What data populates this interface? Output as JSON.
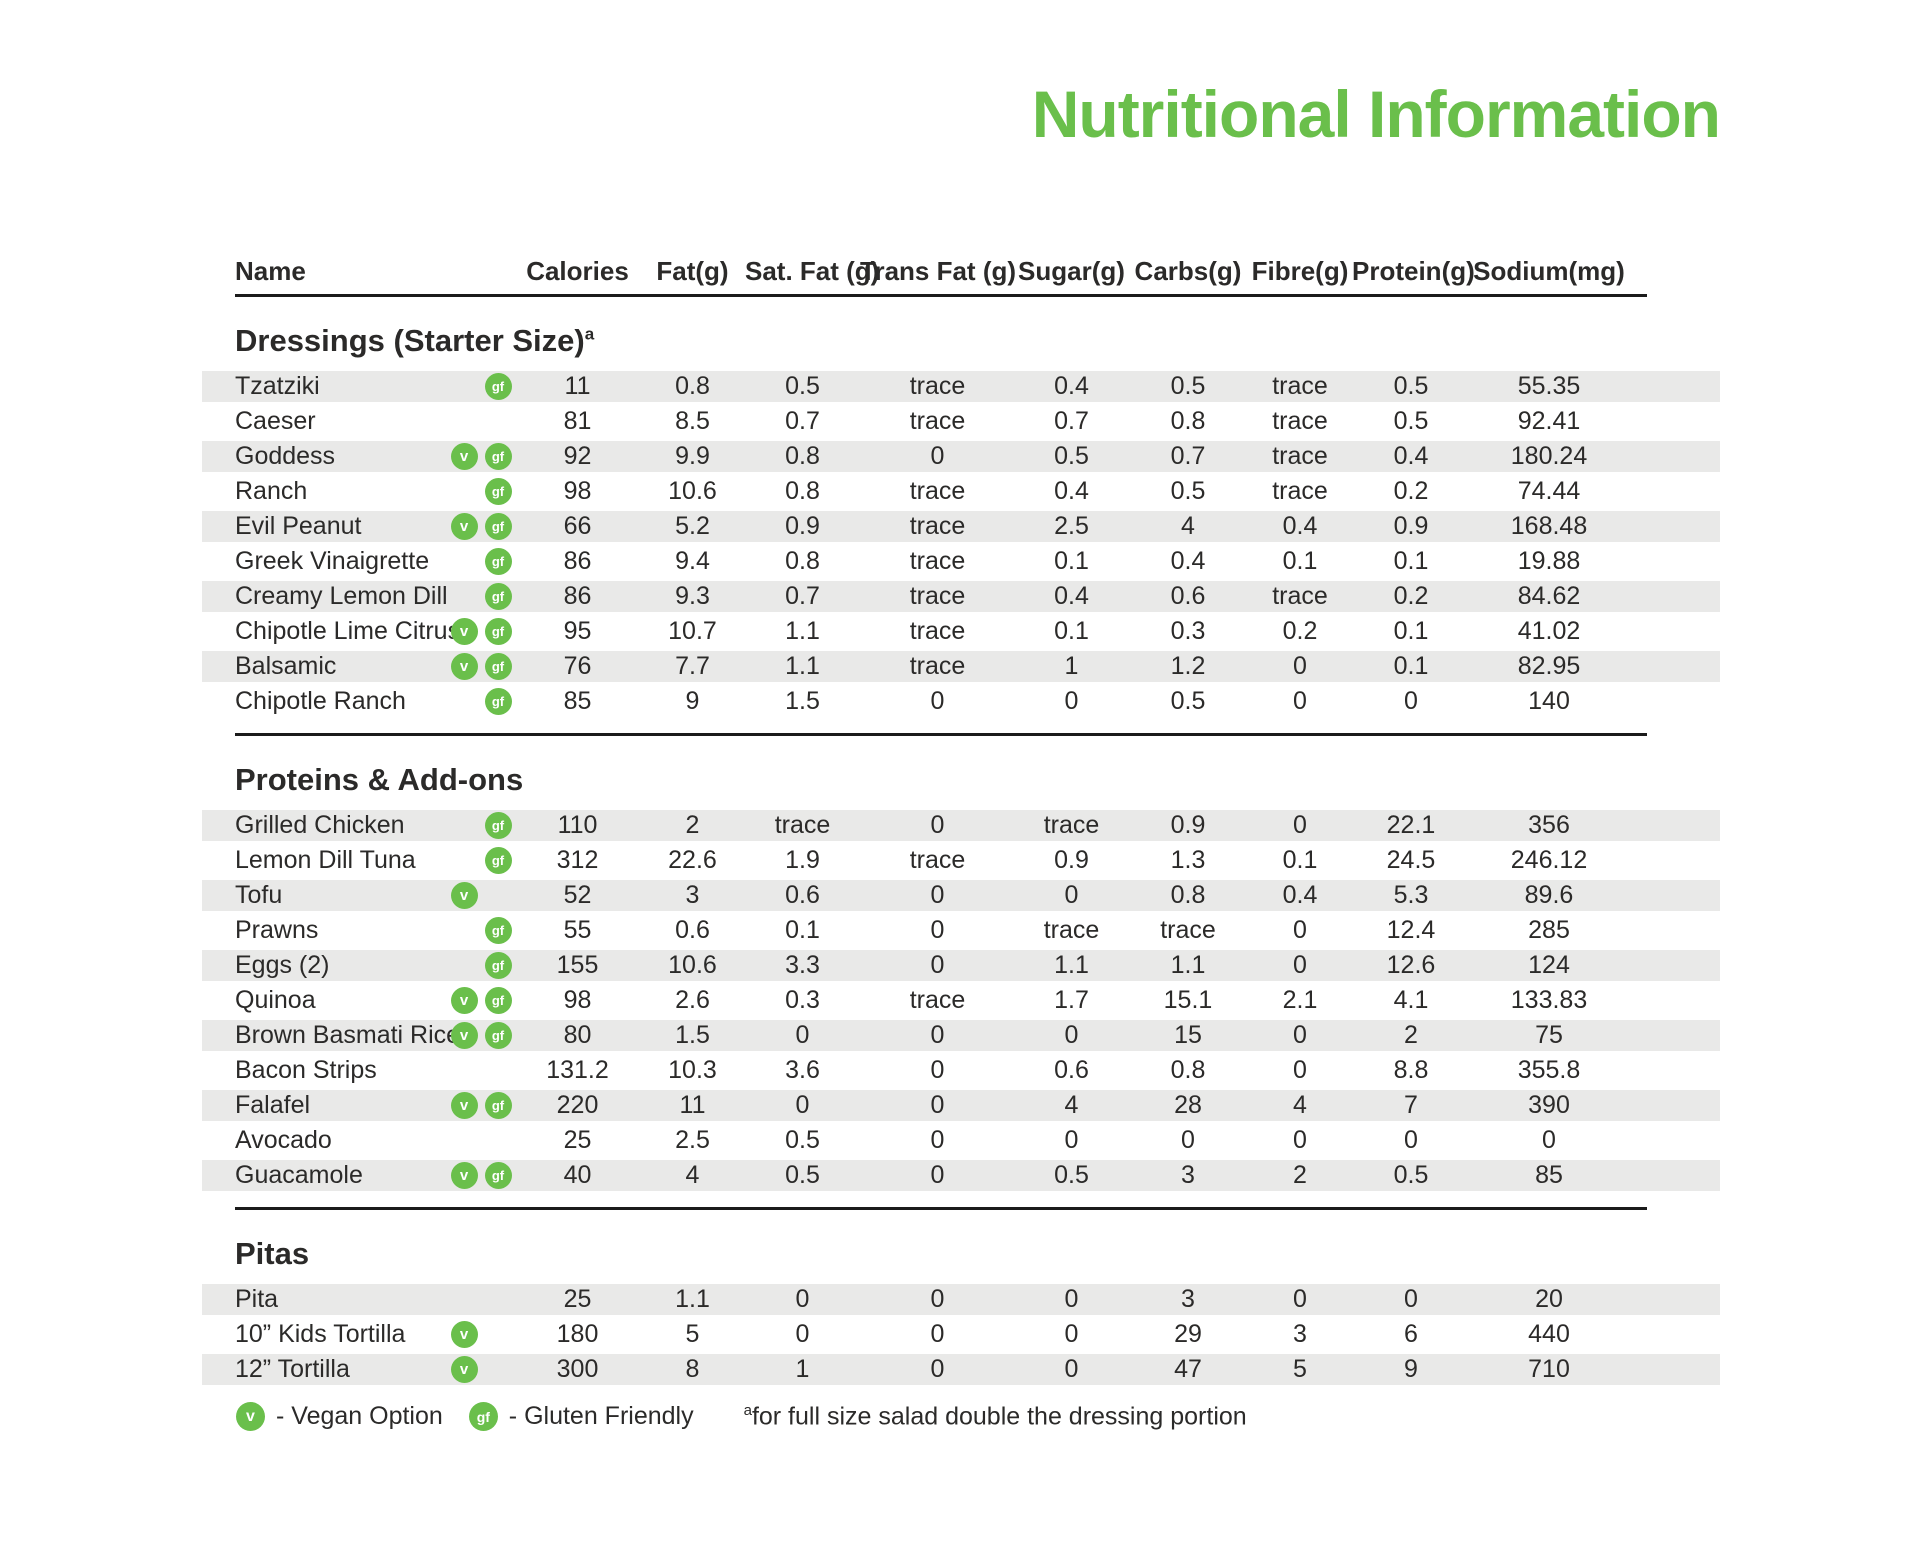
{
  "title": "Nutritional Information",
  "colors": {
    "accent_green": "#6abf4b",
    "row_shade": "#e9e9e8",
    "text": "#2b2a29"
  },
  "badges": {
    "vegan": "v",
    "gluten_friendly": "gf"
  },
  "table": {
    "columns": [
      "Name",
      "Calories",
      "Fat(g)",
      "Sat. Fat (g)",
      "Trans Fat (g)",
      "Sugar(g)",
      "Carbs(g)",
      "Fibre(g)",
      "Protein(g)",
      "Sodium(mg)"
    ],
    "sections": [
      {
        "heading": "Dressings (Starter Size)",
        "heading_superscript": "a",
        "rows": [
          {
            "name": "Tzatziki",
            "vegan": false,
            "gluten_friendly": true,
            "values": [
              "11",
              "0.8",
              "0.5",
              "trace",
              "0.4",
              "0.5",
              "trace",
              "0.5",
              "55.35"
            ]
          },
          {
            "name": "Caeser",
            "vegan": false,
            "gluten_friendly": false,
            "values": [
              "81",
              "8.5",
              "0.7",
              "trace",
              "0.7",
              "0.8",
              "trace",
              "0.5",
              "92.41"
            ]
          },
          {
            "name": "Goddess",
            "vegan": true,
            "gluten_friendly": true,
            "values": [
              "92",
              "9.9",
              "0.8",
              "0",
              "0.5",
              "0.7",
              "trace",
              "0.4",
              "180.24"
            ]
          },
          {
            "name": "Ranch",
            "vegan": false,
            "gluten_friendly": true,
            "values": [
              "98",
              "10.6",
              "0.8",
              "trace",
              "0.4",
              "0.5",
              "trace",
              "0.2",
              "74.44"
            ]
          },
          {
            "name": "Evil Peanut",
            "vegan": true,
            "gluten_friendly": true,
            "values": [
              "66",
              "5.2",
              "0.9",
              "trace",
              "2.5",
              "4",
              "0.4",
              "0.9",
              "168.48"
            ]
          },
          {
            "name": "Greek Vinaigrette",
            "vegan": false,
            "gluten_friendly": true,
            "values": [
              "86",
              "9.4",
              "0.8",
              "trace",
              "0.1",
              "0.4",
              "0.1",
              "0.1",
              "19.88"
            ]
          },
          {
            "name": "Creamy Lemon Dill",
            "vegan": false,
            "gluten_friendly": true,
            "values": [
              "86",
              "9.3",
              "0.7",
              "trace",
              "0.4",
              "0.6",
              "trace",
              "0.2",
              "84.62"
            ]
          },
          {
            "name": "Chipotle Lime Citrus",
            "vegan": true,
            "gluten_friendly": true,
            "values": [
              "95",
              "10.7",
              "1.1",
              "trace",
              "0.1",
              "0.3",
              "0.2",
              "0.1",
              "41.02"
            ]
          },
          {
            "name": "Balsamic",
            "vegan": true,
            "gluten_friendly": true,
            "values": [
              "76",
              "7.7",
              "1.1",
              "trace",
              "1",
              "1.2",
              "0",
              "0.1",
              "82.95"
            ]
          },
          {
            "name": "Chipotle Ranch",
            "vegan": false,
            "gluten_friendly": true,
            "values": [
              "85",
              "9",
              "1.5",
              "0",
              "0",
              "0.5",
              "0",
              "0",
              "140"
            ]
          }
        ]
      },
      {
        "heading": "Proteins & Add-ons",
        "rows": [
          {
            "name": "Grilled Chicken",
            "vegan": false,
            "gluten_friendly": true,
            "values": [
              "110",
              "2",
              "trace",
              "0",
              "trace",
              "0.9",
              "0",
              "22.1",
              "356"
            ]
          },
          {
            "name": "Lemon Dill Tuna",
            "vegan": false,
            "gluten_friendly": true,
            "values": [
              "312",
              "22.6",
              "1.9",
              "trace",
              "0.9",
              "1.3",
              "0.1",
              "24.5",
              "246.12"
            ]
          },
          {
            "name": "Tofu",
            "vegan": true,
            "gluten_friendly": false,
            "values": [
              "52",
              "3",
              "0.6",
              "0",
              "0",
              "0.8",
              "0.4",
              "5.3",
              "89.6"
            ]
          },
          {
            "name": "Prawns",
            "vegan": false,
            "gluten_friendly": true,
            "values": [
              "55",
              "0.6",
              "0.1",
              "0",
              "trace",
              "trace",
              "0",
              "12.4",
              "285"
            ]
          },
          {
            "name": "Eggs (2)",
            "vegan": false,
            "gluten_friendly": true,
            "values": [
              "155",
              "10.6",
              "3.3",
              "0",
              "1.1",
              "1.1",
              "0",
              "12.6",
              "124"
            ]
          },
          {
            "name": "Quinoa",
            "vegan": true,
            "gluten_friendly": true,
            "values": [
              "98",
              "2.6",
              "0.3",
              "trace",
              "1.7",
              "15.1",
              "2.1",
              "4.1",
              "133.83"
            ]
          },
          {
            "name": "Brown Basmati Rice",
            "vegan": true,
            "gluten_friendly": true,
            "values": [
              "80",
              "1.5",
              "0",
              "0",
              "0",
              "15",
              "0",
              "2",
              "75"
            ]
          },
          {
            "name": "Bacon Strips",
            "vegan": false,
            "gluten_friendly": false,
            "values": [
              "131.2",
              "10.3",
              "3.6",
              "0",
              "0.6",
              "0.8",
              "0",
              "8.8",
              "355.8"
            ]
          },
          {
            "name": "Falafel",
            "vegan": true,
            "gluten_friendly": true,
            "values": [
              "220",
              "11",
              "0",
              "0",
              "4",
              "28",
              "4",
              "7",
              "390"
            ]
          },
          {
            "name": "Avocado",
            "vegan": false,
            "gluten_friendly": false,
            "values": [
              "25",
              "2.5",
              "0.5",
              "0",
              "0",
              "0",
              "0",
              "0",
              "0"
            ]
          },
          {
            "name": "Guacamole",
            "vegan": true,
            "gluten_friendly": true,
            "values": [
              "40",
              "4",
              "0.5",
              "0",
              "0.5",
              "3",
              "2",
              "0.5",
              "85"
            ]
          }
        ]
      },
      {
        "heading": "Pitas",
        "rows": [
          {
            "name": "Pita",
            "vegan": false,
            "gluten_friendly": false,
            "values": [
              "25",
              "1.1",
              "0",
              "0",
              "0",
              "3",
              "0",
              "0",
              "20"
            ]
          },
          {
            "name": "10” Kids Tortilla",
            "vegan": true,
            "gluten_friendly": false,
            "values": [
              "180",
              "5",
              "0",
              "0",
              "0",
              "29",
              "3",
              "6",
              "440"
            ]
          },
          {
            "name": "12” Tortilla",
            "vegan": true,
            "gluten_friendly": false,
            "values": [
              "300",
              "8",
              "1",
              "0",
              "0",
              "47",
              "5",
              "9",
              "710"
            ]
          }
        ]
      }
    ]
  },
  "legend": {
    "vegan_label": "- Vegan Option",
    "gluten_friendly_label": "- Gluten Friendly",
    "footnote_superscript": "a",
    "footnote_text": "for full size salad double the dressing portion"
  }
}
